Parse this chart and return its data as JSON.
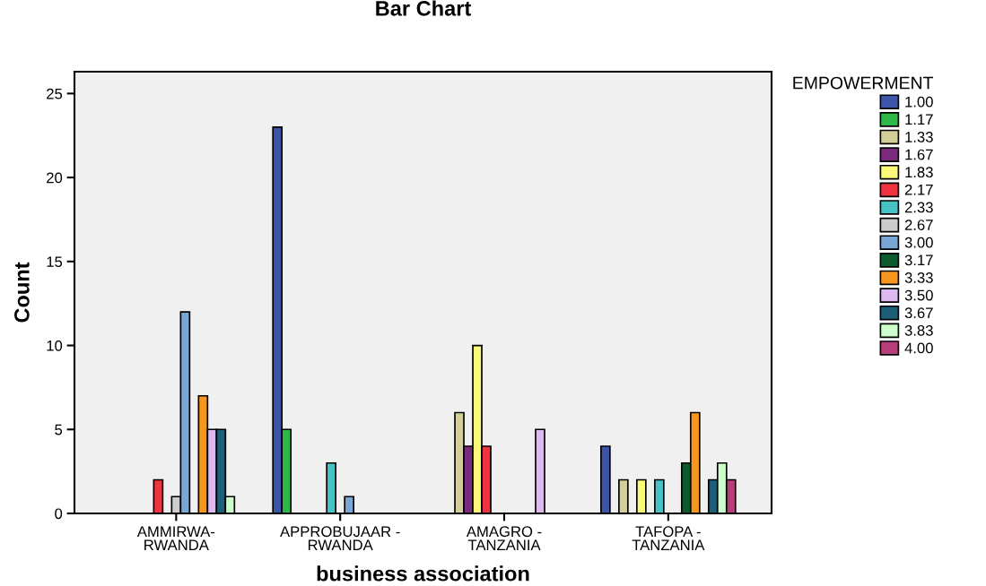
{
  "chart_data": {
    "type": "bar",
    "title": "Bar Chart",
    "xlabel": "business association",
    "ylabel": "Count",
    "legend_title": "EMPOWERMENT",
    "categories": [
      "AMMIRWA-\nRWANDA",
      "APPROBUJAAR -\nRWANDA",
      "AMAGRO -\nTANZANIA",
      "TAFOPA -\nTANZANIA"
    ],
    "series": [
      {
        "name": "1.00",
        "color": "#3d55a8",
        "values": [
          null,
          23,
          null,
          4
        ]
      },
      {
        "name": "1.17",
        "color": "#2db84a",
        "values": [
          null,
          5,
          null,
          null
        ]
      },
      {
        "name": "1.33",
        "color": "#d3ce97",
        "values": [
          null,
          null,
          6,
          2
        ]
      },
      {
        "name": "1.67",
        "color": "#7b2a7e",
        "values": [
          null,
          null,
          4,
          null
        ]
      },
      {
        "name": "1.83",
        "color": "#fbf97a",
        "values": [
          null,
          null,
          10,
          2
        ]
      },
      {
        "name": "2.17",
        "color": "#ef3340",
        "values": [
          2,
          null,
          4,
          null
        ]
      },
      {
        "name": "2.33",
        "color": "#48c1c4",
        "values": [
          null,
          3,
          null,
          2
        ]
      },
      {
        "name": "2.67",
        "color": "#cccccc",
        "values": [
          1,
          null,
          null,
          null
        ]
      },
      {
        "name": "3.00",
        "color": "#7aa6d6",
        "values": [
          12,
          1,
          null,
          null
        ]
      },
      {
        "name": "3.17",
        "color": "#0c5a2e",
        "values": [
          null,
          null,
          null,
          3
        ]
      },
      {
        "name": "3.33",
        "color": "#f7961e",
        "values": [
          7,
          null,
          null,
          6
        ]
      },
      {
        "name": "3.50",
        "color": "#dcbaf0",
        "values": [
          5,
          null,
          5,
          null
        ]
      },
      {
        "name": "3.67",
        "color": "#1d5e78",
        "values": [
          5,
          null,
          null,
          2
        ]
      },
      {
        "name": "3.83",
        "color": "#ccffcc",
        "values": [
          1,
          null,
          null,
          3
        ]
      },
      {
        "name": "4.00",
        "color": "#b83e7a",
        "values": [
          null,
          null,
          null,
          2
        ]
      }
    ],
    "ylim": [
      0,
      26.3
    ],
    "yticks": [
      0,
      5,
      10,
      15,
      20,
      25
    ],
    "grid": false,
    "legend": "right"
  }
}
